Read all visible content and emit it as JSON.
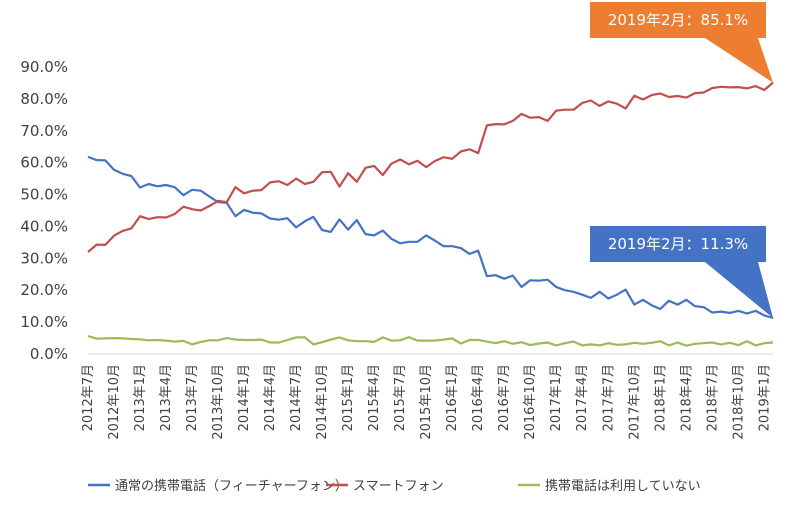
{
  "chart_data": {
    "type": "line",
    "ylim": [
      0,
      90
    ],
    "yticks": [
      "0.0%",
      "10.0%",
      "20.0%",
      "30.0%",
      "40.0%",
      "50.0%",
      "60.0%",
      "70.0%",
      "80.0%",
      "90.0%"
    ],
    "x_start": "2012年7月",
    "x_end": "2019年2月",
    "x_tick_labels": [
      "2012年7月",
      "2012年10月",
      "2013年1月",
      "2013年4月",
      "2013年7月",
      "2013年10月",
      "2014年1月",
      "2014年4月",
      "2014年7月",
      "2014年10月",
      "2015年1月",
      "2015年4月",
      "2015年7月",
      "2015年10月",
      "2016年1月",
      "2016年4月",
      "2016年7月",
      "2016年10月",
      "2017年1月",
      "2017年4月",
      "2017年7月",
      "2017年10月",
      "2018年1月",
      "2018年4月",
      "2018年7月",
      "2018年10月",
      "2019年1月"
    ],
    "grid": false,
    "legend_position": "bottom",
    "series": [
      {
        "name": "通常の携帯電話（フィーチャーフォン）",
        "color": "#4472c4",
        "values": [
          61.8,
          60.8,
          60.7,
          57.8,
          56.5,
          55.8,
          52.2,
          53.3,
          52.6,
          53.0,
          52.3,
          49.8,
          51.5,
          51.2,
          49.4,
          47.6,
          47.4,
          43.2,
          45.2,
          44.3,
          44.1,
          42.5,
          42.1,
          42.6,
          39.7,
          41.6,
          43.0,
          38.9,
          38.3,
          42.2,
          39.0,
          42.0,
          37.6,
          37.2,
          38.7,
          36.1,
          34.7,
          35.2,
          35.2,
          37.2,
          35.6,
          33.8,
          33.8,
          33.2,
          31.4,
          32.4,
          24.4,
          24.7,
          23.6,
          24.6,
          21.0,
          23.1,
          23.0,
          23.3,
          21.0,
          20.0,
          19.5,
          18.6,
          17.6,
          19.5,
          17.4,
          18.6,
          20.2,
          15.5,
          17.0,
          15.3,
          14.1,
          16.7,
          15.5,
          17.0,
          15.0,
          14.7,
          13.0,
          13.3,
          12.9,
          13.5,
          12.7,
          13.5,
          12.1,
          11.3
        ]
      },
      {
        "name": "スマートフォン",
        "color": "#c0504d",
        "values": [
          32.0,
          34.3,
          34.2,
          37.1,
          38.6,
          39.4,
          43.2,
          42.3,
          42.9,
          42.8,
          43.9,
          46.2,
          45.4,
          45.0,
          46.4,
          48.0,
          47.6,
          52.3,
          50.4,
          51.2,
          51.4,
          53.8,
          54.2,
          53.0,
          55.0,
          53.3,
          54.0,
          57.0,
          57.1,
          52.5,
          56.7,
          54.0,
          58.4,
          59.0,
          56.1,
          59.7,
          61.0,
          59.5,
          60.6,
          58.6,
          60.5,
          61.7,
          61.2,
          63.5,
          64.2,
          63.0,
          71.7,
          72.1,
          72.0,
          73.1,
          75.3,
          74.1,
          74.3,
          73.1,
          76.3,
          76.6,
          76.6,
          78.7,
          79.5,
          77.8,
          79.2,
          78.5,
          77.0,
          81.0,
          79.8,
          81.2,
          81.7,
          80.6,
          80.9,
          80.4,
          81.8,
          82.0,
          83.4,
          83.8,
          83.6,
          83.7,
          83.3,
          84.0,
          82.8,
          85.1
        ]
      },
      {
        "name": "携帯電話は利用していない",
        "color": "#9bbb59",
        "values": [
          5.6,
          4.8,
          4.9,
          5.0,
          4.9,
          4.7,
          4.6,
          4.3,
          4.4,
          4.2,
          3.9,
          4.1,
          3.0,
          3.8,
          4.3,
          4.3,
          5.0,
          4.5,
          4.4,
          4.4,
          4.5,
          3.6,
          3.6,
          4.4,
          5.2,
          5.2,
          3.0,
          3.7,
          4.5,
          5.2,
          4.3,
          4.0,
          4.0,
          3.8,
          5.2,
          4.2,
          4.3,
          5.3,
          4.2,
          4.2,
          4.2,
          4.5,
          4.9,
          3.3,
          4.4,
          4.4,
          3.9,
          3.4,
          4.0,
          3.2,
          3.7,
          2.8,
          3.3,
          3.6,
          2.7,
          3.4,
          3.9,
          2.7,
          3.0,
          2.7,
          3.4,
          2.9,
          3.0,
          3.5,
          3.2,
          3.5,
          4.0,
          2.7,
          3.6,
          2.6,
          3.2,
          3.4,
          3.6,
          3.0,
          3.5,
          2.8,
          4.0,
          2.7,
          3.4,
          3.6
        ]
      }
    ],
    "annotations": [
      {
        "text": "2019年2月：85.1%",
        "series": 1,
        "color": "#ed7d31"
      },
      {
        "text": "2019年2月：11.3%",
        "series": 0,
        "color": "#4472c4"
      }
    ]
  }
}
